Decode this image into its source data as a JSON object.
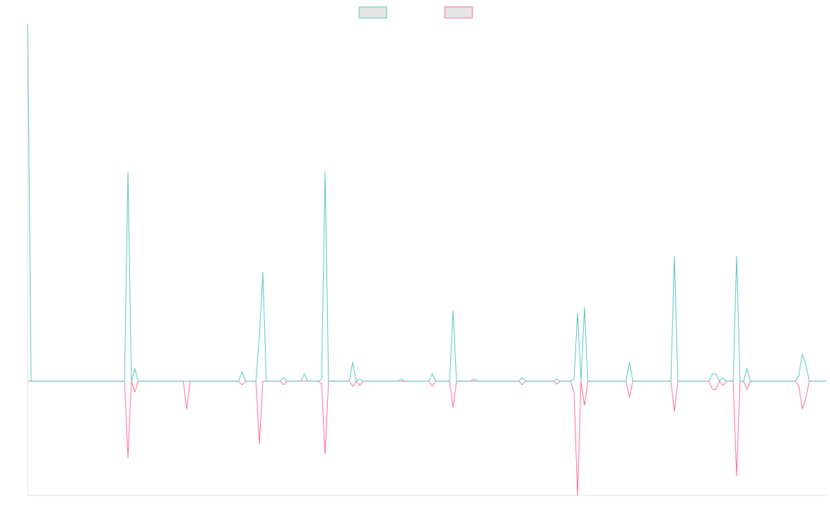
{
  "chart_data": {
    "type": "line",
    "x": [
      0,
      1,
      28,
      29,
      30,
      31,
      32,
      45,
      46,
      47,
      61,
      62,
      63,
      66,
      67,
      68,
      69,
      73,
      74,
      75,
      79,
      80,
      81,
      84,
      85,
      86,
      87,
      93,
      94,
      95,
      96,
      97,
      107,
      108,
      109,
      116,
      117,
      118,
      122,
      123,
      124,
      128,
      129,
      130,
      142,
      143,
      144,
      152,
      153,
      154,
      157,
      158,
      159,
      160,
      161,
      162,
      173,
      174,
      175,
      186,
      187,
      188,
      197,
      198,
      199,
      200,
      201,
      202,
      204,
      205,
      206,
      207,
      208,
      209,
      222,
      223,
      224,
      225,
      226,
      231
    ],
    "xlim": [
      0,
      231
    ],
    "ylim": [
      -32,
      100
    ],
    "legend": "top",
    "series": [
      {
        "color": "#4bc0c0",
        "values": [
          100,
          0,
          0,
          58.7,
          0,
          3.5,
          0,
          0,
          0,
          0,
          0,
          2.7,
          0,
          0,
          12.6,
          30.6,
          0,
          0,
          1,
          0,
          0,
          2.1,
          0,
          0,
          0.6,
          58.7,
          0,
          0,
          5.4,
          0,
          0.6,
          0,
          0,
          0.6,
          0,
          0,
          2.1,
          0,
          0,
          19.8,
          0,
          0,
          0.6,
          0,
          0,
          1,
          0,
          0,
          0.6,
          0,
          0,
          0.6,
          19,
          0,
          20.7,
          0,
          0,
          5.4,
          0,
          0,
          35.1,
          0,
          0,
          2.1,
          2.1,
          0,
          1,
          0,
          0,
          35.1,
          0,
          0,
          3.5,
          0,
          0,
          1.6,
          7.6,
          4.7,
          0,
          0
        ]
      },
      {
        "color": "#ff6384",
        "values": [
          0,
          0,
          0,
          -21.5,
          0,
          -3,
          0,
          0,
          -7.8,
          0,
          0,
          -1,
          0,
          0,
          -17.6,
          0,
          0,
          0,
          -1,
          0,
          0,
          0,
          0,
          0,
          -0.6,
          -20.5,
          0,
          0,
          -1.4,
          0,
          -1.2,
          0,
          0,
          0,
          0,
          0,
          -1.4,
          0,
          0,
          -7.4,
          0,
          0,
          0,
          0,
          0,
          -1,
          0,
          0,
          -0.8,
          0,
          0,
          -3.3,
          -32,
          0,
          -6.8,
          0,
          0,
          -4.5,
          0,
          0,
          -8.5,
          0,
          0,
          -2.3,
          -2.3,
          0,
          -1.2,
          0,
          0,
          -26.6,
          0,
          0,
          -2.3,
          0,
          0,
          -1.4,
          -7.8,
          -4.8,
          0,
          0
        ]
      }
    ]
  }
}
